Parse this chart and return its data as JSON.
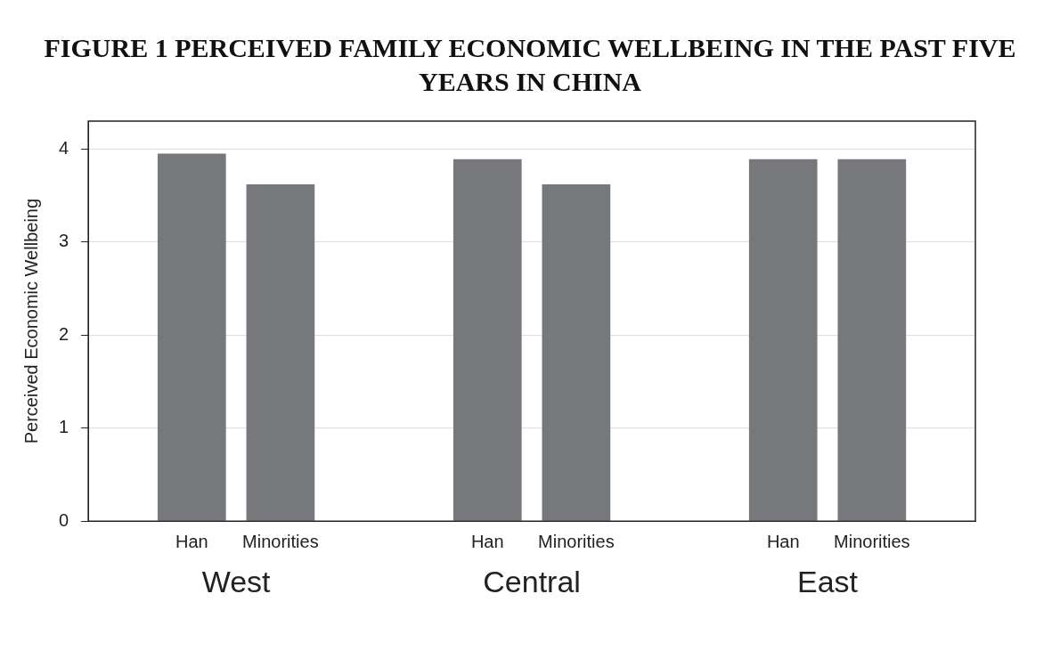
{
  "chart_data": {
    "type": "bar",
    "title": "FIGURE 1   PERCEIVED FAMILY ECONOMIC WELLBEING IN THE PAST FIVE YEARS IN CHINA",
    "ylabel": "Perceived Economic Wellbeing",
    "categories": [
      "West",
      "Central",
      "East"
    ],
    "series": [
      {
        "name": "Han",
        "color": "#77787c",
        "values": [
          3.95,
          3.89,
          3.89
        ]
      },
      {
        "name": "Minorities",
        "color": "#77787c",
        "values": [
          3.62,
          3.62,
          3.89
        ]
      }
    ],
    "ylim": [
      0,
      4.3
    ],
    "yticks": [
      0,
      1,
      2,
      3,
      4
    ],
    "grid": "y",
    "legend": false
  }
}
